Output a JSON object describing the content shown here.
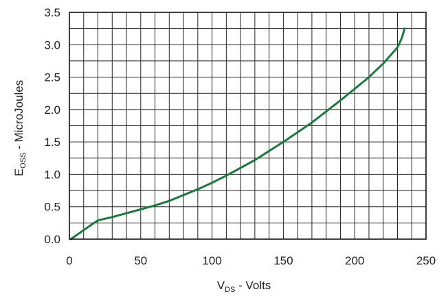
{
  "chart_data": {
    "type": "line",
    "title": "",
    "xlabel": {
      "main": "V",
      "sub": "DS",
      "rest": " - Volts"
    },
    "ylabel": {
      "main": "E",
      "sub": "OSS",
      "rest": " - MicroJoules"
    },
    "xlim": [
      0,
      250
    ],
    "ylim": [
      0,
      3.5
    ],
    "x_ticks": [
      0,
      50,
      100,
      150,
      200,
      250
    ],
    "x_tick_labels": [
      "0",
      "50",
      "100",
      "150",
      "200",
      "250"
    ],
    "y_ticks": [
      0,
      0.5,
      1.0,
      1.5,
      2.0,
      2.5,
      3.0,
      3.5
    ],
    "y_tick_labels": [
      "0.0",
      "0.5",
      "1.0",
      "1.5",
      "2.0",
      "2.5",
      "3.0",
      "3.5"
    ],
    "grid": true,
    "legend": "none",
    "colors": {
      "line": "#1a7a3c",
      "grid": "#222222"
    },
    "series": [
      {
        "x": [
          1,
          10,
          20,
          30,
          40,
          50,
          60,
          70,
          80,
          90,
          100,
          110,
          120,
          130,
          140,
          150,
          160,
          170,
          180,
          190,
          200,
          210,
          220,
          230,
          233,
          235
        ],
        "y": [
          0.0,
          0.14,
          0.29,
          0.34,
          0.4,
          0.46,
          0.52,
          0.59,
          0.68,
          0.77,
          0.87,
          0.98,
          1.1,
          1.22,
          1.36,
          1.5,
          1.65,
          1.8,
          1.97,
          2.14,
          2.32,
          2.5,
          2.71,
          2.96,
          3.1,
          3.25
        ]
      }
    ]
  }
}
